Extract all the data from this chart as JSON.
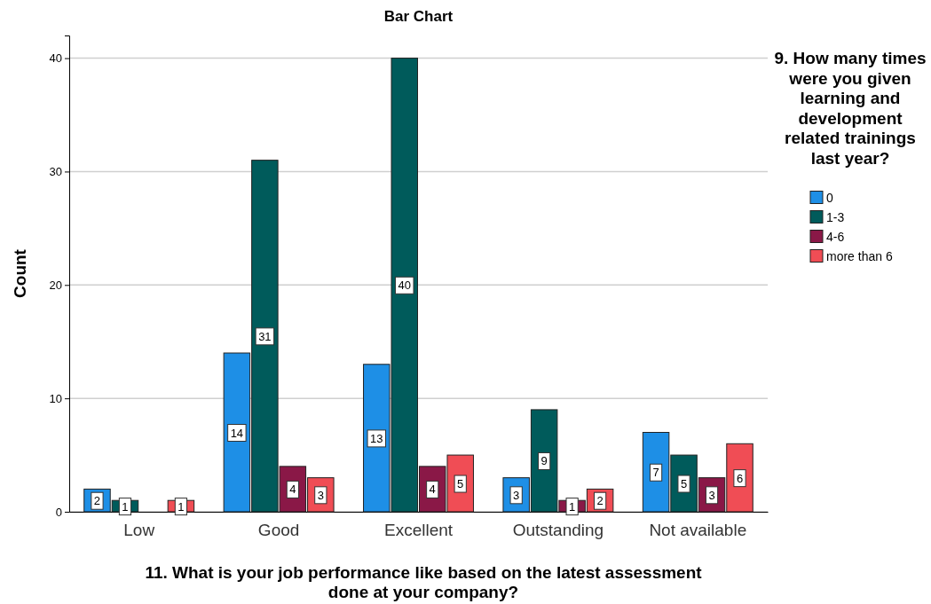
{
  "chart_data": {
    "type": "bar",
    "title": "Bar Chart",
    "xlabel": "11. What is your job performance like based on the latest assessment done at your company?",
    "ylabel": "Count",
    "legend_title": "9. How many times were you given learning and development related trainings last year?",
    "categories": [
      "Low",
      "Good",
      "Excellent",
      "Outstanding",
      "Not available"
    ],
    "series": [
      {
        "name": "0",
        "color": "#1e8fe6",
        "values": [
          2,
          14,
          13,
          3,
          7
        ]
      },
      {
        "name": "1-3",
        "color": "#005b5b",
        "values": [
          1,
          31,
          40,
          9,
          5
        ]
      },
      {
        "name": "4-6",
        "color": "#8a1847",
        "values": [
          null,
          4,
          4,
          1,
          3
        ]
      },
      {
        "name": "more than 6",
        "color": "#f04d55",
        "values": [
          1,
          3,
          5,
          2,
          6
        ]
      }
    ],
    "ylim": [
      0,
      42
    ],
    "yticks": [
      0,
      10,
      20,
      30,
      40
    ],
    "grid": "y",
    "legend": "right",
    "data_labels": true
  }
}
